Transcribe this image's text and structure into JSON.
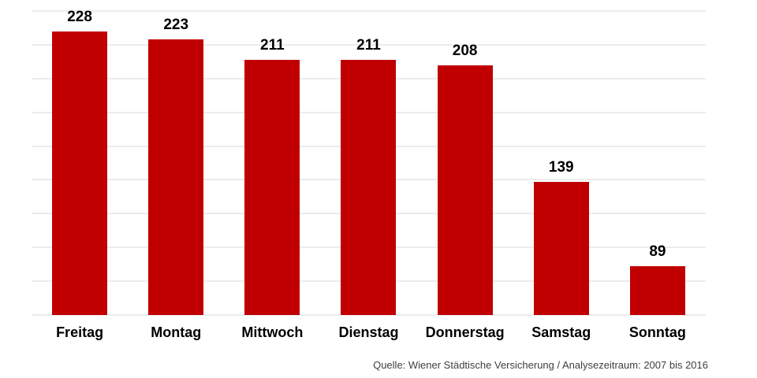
{
  "chart_data": {
    "type": "bar",
    "categories": [
      "Freitag",
      "Montag",
      "Mittwoch",
      "Dienstag",
      "Donnerstag",
      "Samstag",
      "Sonntag"
    ],
    "values": [
      228,
      223,
      211,
      211,
      208,
      139,
      89
    ],
    "title": "",
    "xlabel": "",
    "ylabel": "",
    "ylim": [
      60,
      240
    ],
    "grid_step": 20,
    "grid": true,
    "legend": false,
    "y_tick_labels_visible": false,
    "data_labels_visible": true,
    "bar_color": "#C00000",
    "gridline_color": "#D8D8D8",
    "label_color": "#000000",
    "source": "Quelle: Wiener Städtische Versicherung / Analysezeitraum: 2007 bis 2016",
    "source_color": "#3F3F3F"
  }
}
